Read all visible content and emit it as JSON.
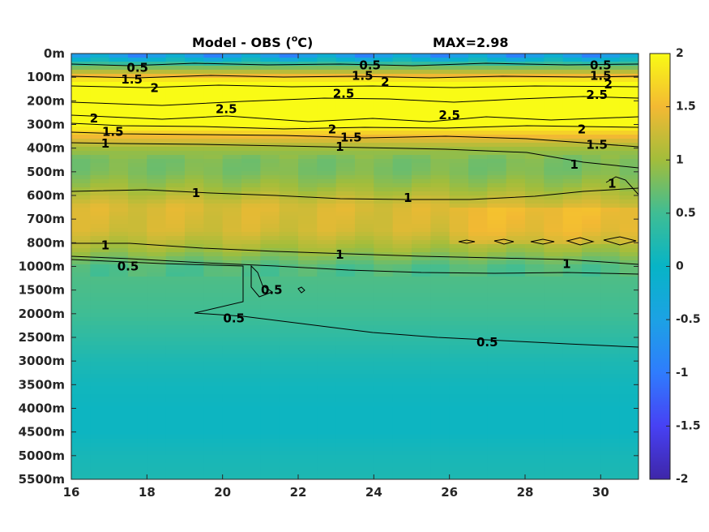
{
  "chart_data": {
    "type": "heatmap",
    "title": "Model - OBS (",
    "title_super": "o",
    "title_unit": "C)",
    "max_label": "MAX=2.98",
    "x": {
      "range": [
        16,
        31
      ],
      "ticks": [
        16,
        18,
        20,
        22,
        24,
        26,
        28,
        30
      ],
      "tick_labels": [
        "16",
        "18",
        "20",
        "22",
        "24",
        "26",
        "28",
        "30"
      ]
    },
    "y": {
      "levels": [
        "0m",
        "100m",
        "200m",
        "300m",
        "400m",
        "500m",
        "600m",
        "700m",
        "800m",
        "1000m",
        "1500m",
        "2000m",
        "2500m",
        "3000m",
        "3500m",
        "4000m",
        "4500m",
        "5000m",
        "5500m"
      ]
    },
    "colorbar": {
      "range": [
        -2,
        2
      ],
      "ticks": [
        2,
        1.5,
        1,
        0.5,
        0,
        -0.5,
        -1,
        -1.5,
        -2
      ],
      "tick_labels": [
        "2",
        "1.5",
        "1",
        "0.5",
        "0",
        "-0.5",
        "-1",
        "-1.5",
        "-2"
      ],
      "colormap": "parula"
    },
    "profile": [
      {
        "level": 0,
        "value": -0.8
      },
      {
        "level": 0.5,
        "value": 0.6
      },
      {
        "level": 1.0,
        "value": 1.6
      },
      {
        "level": 1.5,
        "value": 2.6
      },
      {
        "level": 2.5,
        "value": 2.7
      },
      {
        "level": 3.0,
        "value": 2.1
      },
      {
        "level": 3.5,
        "value": 1.5
      },
      {
        "level": 4.0,
        "value": 1.0
      },
      {
        "level": 4.5,
        "value": 0.8
      },
      {
        "level": 5.0,
        "value": 0.8
      },
      {
        "level": 5.7,
        "value": 1.0
      },
      {
        "level": 6.5,
        "value": 1.35
      },
      {
        "level": 7.5,
        "value": 1.3
      },
      {
        "level": 8.3,
        "value": 1.0
      },
      {
        "level": 9.0,
        "value": 0.6
      },
      {
        "level": 10.0,
        "value": 0.55
      },
      {
        "level": 11.0,
        "value": 0.5
      },
      {
        "level": 12.0,
        "value": 0.35
      },
      {
        "level": 13.0,
        "value": 0.2
      },
      {
        "level": 14.0,
        "value": 0.1
      },
      {
        "level": 15.0,
        "value": 0.05
      },
      {
        "level": 16.0,
        "value": 0.05
      },
      {
        "level": 17.0,
        "value": 0.15
      },
      {
        "level": 18.0,
        "value": 0.2
      }
    ],
    "contour_labels": [
      {
        "text": "0.5",
        "x": 17.75,
        "level": 0.6
      },
      {
        "text": "1.5",
        "x": 17.6,
        "level": 1.1
      },
      {
        "text": "2",
        "x": 18.2,
        "level": 1.45
      },
      {
        "text": "2.5",
        "x": 20.1,
        "level": 2.35
      },
      {
        "text": "2",
        "x": 16.6,
        "level": 2.75
      },
      {
        "text": "1.5",
        "x": 17.1,
        "level": 3.3
      },
      {
        "text": "1",
        "x": 16.9,
        "level": 3.8
      },
      {
        "text": "0.5",
        "x": 23.9,
        "level": 0.5
      },
      {
        "text": "1.5",
        "x": 23.7,
        "level": 0.95
      },
      {
        "text": "2",
        "x": 24.3,
        "level": 1.2
      },
      {
        "text": "2.5",
        "x": 23.2,
        "level": 1.7
      },
      {
        "text": "2.5",
        "x": 26.0,
        "level": 2.6
      },
      {
        "text": "2",
        "x": 22.9,
        "level": 3.2
      },
      {
        "text": "1.5",
        "x": 23.4,
        "level": 3.55
      },
      {
        "text": "1",
        "x": 23.1,
        "level": 3.95
      },
      {
        "text": "0.5",
        "x": 30.0,
        "level": 0.5
      },
      {
        "text": "1.5",
        "x": 30.0,
        "level": 0.95
      },
      {
        "text": "2",
        "x": 30.2,
        "level": 1.3
      },
      {
        "text": "2.5",
        "x": 29.9,
        "level": 1.75
      },
      {
        "text": "2",
        "x": 29.5,
        "level": 3.2
      },
      {
        "text": "1.5",
        "x": 29.9,
        "level": 3.85
      },
      {
        "text": "1",
        "x": 29.3,
        "level": 4.7
      },
      {
        "text": "1",
        "x": 30.3,
        "level": 5.5
      },
      {
        "text": "1",
        "x": 19.3,
        "level": 5.9
      },
      {
        "text": "1",
        "x": 24.9,
        "level": 6.1
      },
      {
        "text": "1",
        "x": 16.9,
        "level": 8.1
      },
      {
        "text": "1",
        "x": 23.1,
        "level": 8.5
      },
      {
        "text": "1",
        "x": 29.1,
        "level": 8.9
      },
      {
        "text": "0.5",
        "x": 17.5,
        "level": 9.0
      },
      {
        "text": "0.5",
        "x": 21.3,
        "level": 10.0
      },
      {
        "text": "0.5",
        "x": 20.3,
        "level": 11.2
      },
      {
        "text": "0.5",
        "x": 27.0,
        "level": 12.2
      }
    ]
  }
}
